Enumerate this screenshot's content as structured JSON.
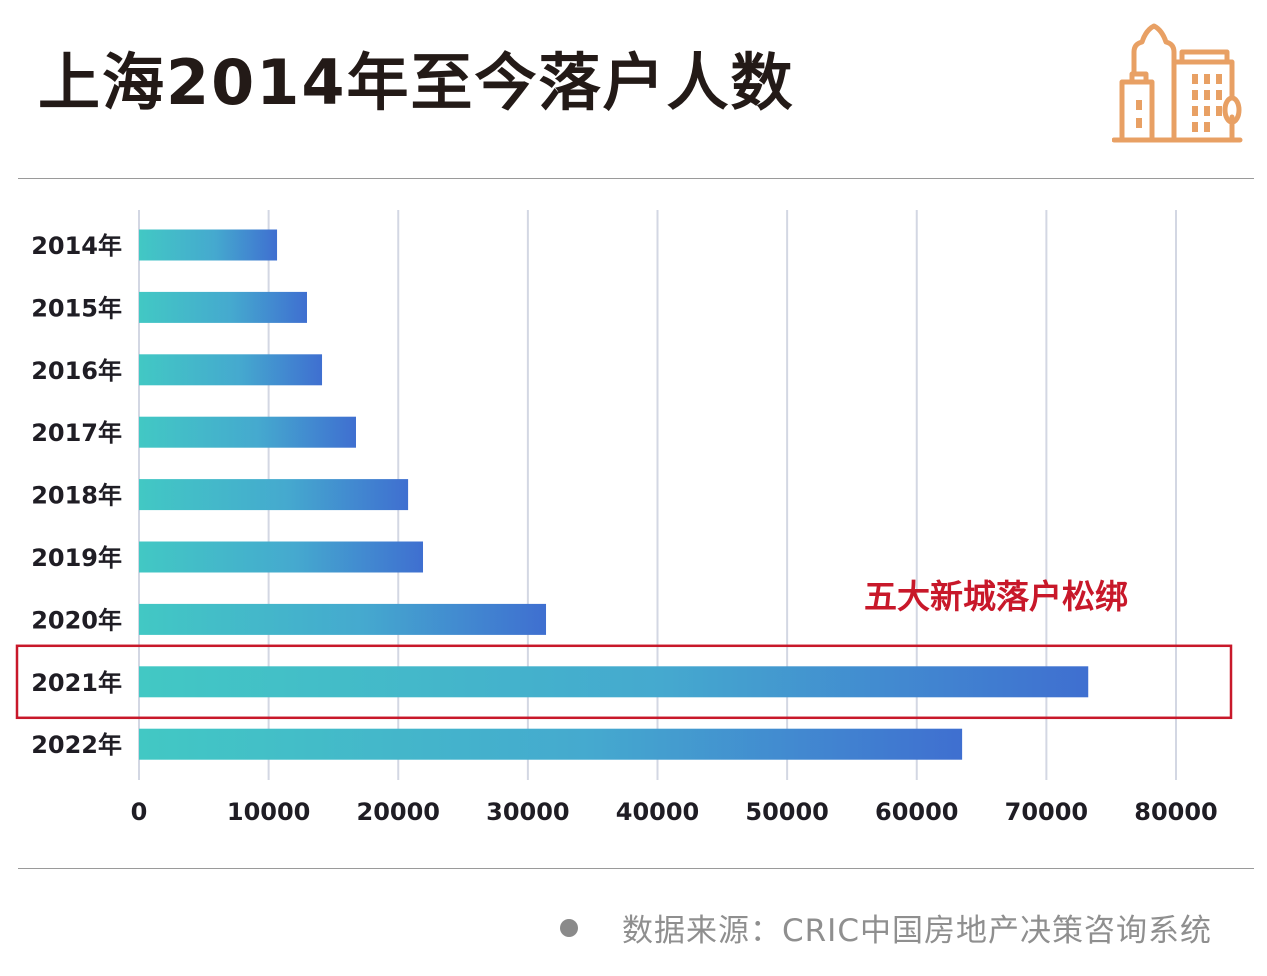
{
  "header": {
    "title": "上海2014年至今落户人数",
    "logo_icon": "city-buildings-icon",
    "logo_color": "#e8a064"
  },
  "chart_data": {
    "type": "bar",
    "orientation": "horizontal",
    "title": "上海2014年至今落户人数",
    "categories": [
      "2014年",
      "2015年",
      "2016年",
      "2017年",
      "2018年",
      "2019年",
      "2020年",
      "2021年",
      "2022年"
    ],
    "values": [
      10650,
      12960,
      14120,
      16740,
      20760,
      21910,
      31400,
      73230,
      63500
    ],
    "xlabel": "",
    "ylabel": "",
    "xlim": [
      0,
      80000
    ],
    "x_ticks": [
      0,
      10000,
      20000,
      30000,
      40000,
      50000,
      60000,
      70000,
      80000
    ],
    "x_tick_labels": [
      "0",
      "10000",
      "20000",
      "30000",
      "40000",
      "50000",
      "60000",
      "70000",
      "80000"
    ],
    "grid": "vertical",
    "legend": "none",
    "bar_gradient": [
      "#42c8c4",
      "#3f6fd0"
    ],
    "highlight": {
      "category": "2021年",
      "annotation": "五大新城落户松绑",
      "color": "#c8182a"
    }
  },
  "footer": {
    "source_text": "数据来源：CRIC中国房地产决策咨询系统"
  }
}
